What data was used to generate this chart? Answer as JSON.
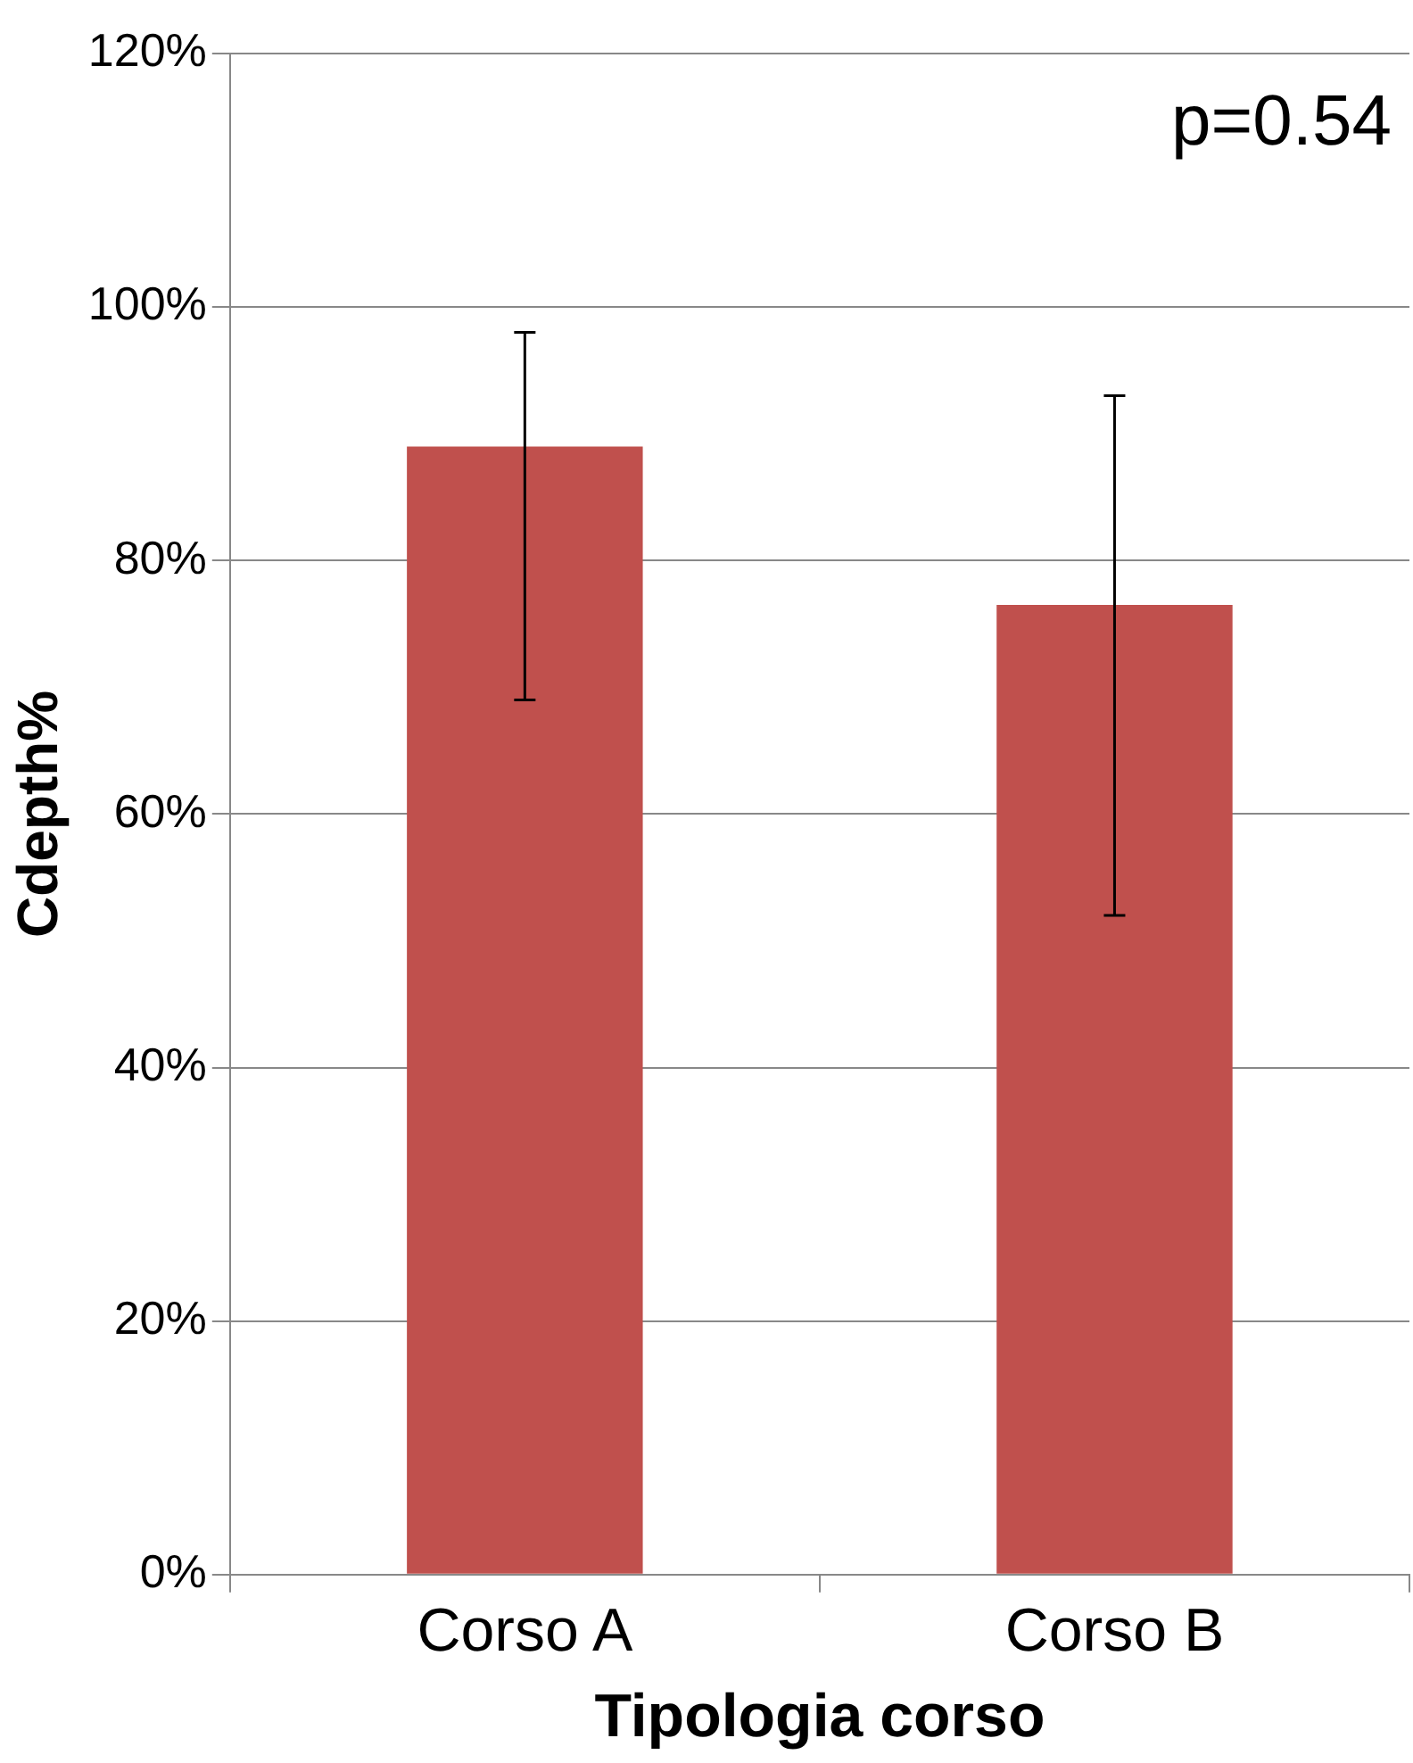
{
  "chart_data": {
    "type": "bar",
    "xlabel": "Tipologia corso",
    "ylabel": "Cdepth%",
    "categories": [
      "Corso A",
      "Corso B"
    ],
    "values": [
      89,
      76.5
    ],
    "color": "#c0504d",
    "errors": [
      [
        69,
        98
      ],
      [
        52,
        93
      ]
    ],
    "ylim": [
      0,
      120
    ],
    "yticks": [
      {
        "value": 0,
        "label": "0%"
      },
      {
        "value": 20,
        "label": "20%"
      },
      {
        "value": 40,
        "label": "40%"
      },
      {
        "value": 60,
        "label": "60%"
      },
      {
        "value": 80,
        "label": "80%"
      },
      {
        "value": 100,
        "label": "100%"
      },
      {
        "value": 120,
        "label": "120%"
      }
    ],
    "grid": "y",
    "legend": false,
    "annotations": [
      "p=0.54"
    ]
  }
}
